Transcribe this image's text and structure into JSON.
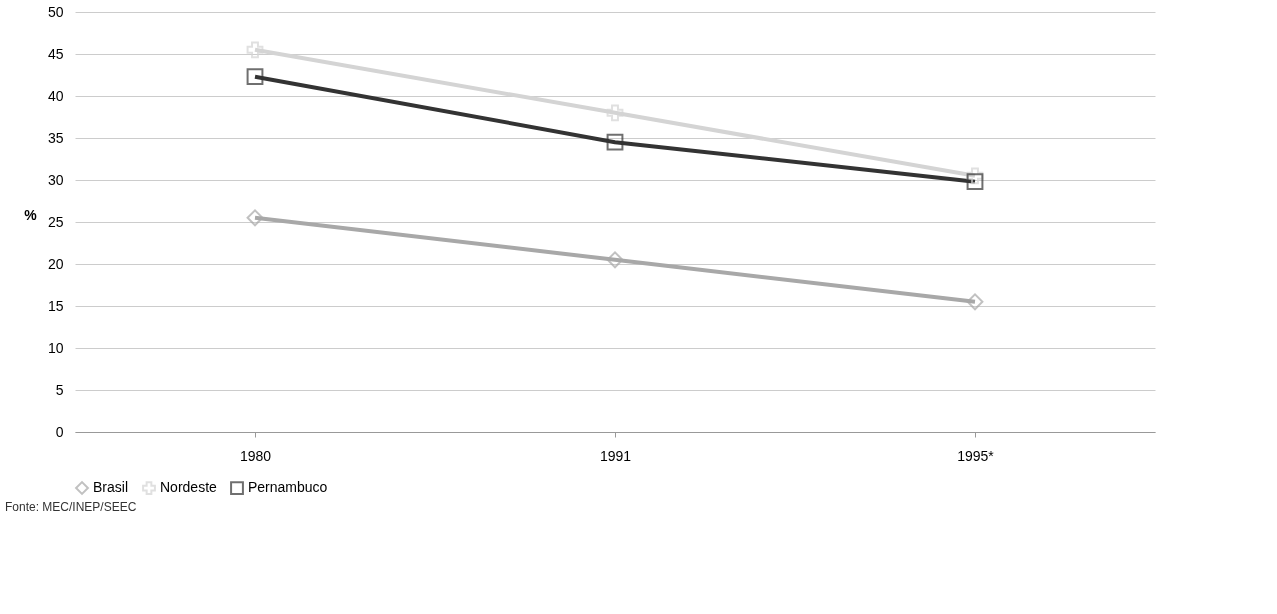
{
  "chart_data": {
    "type": "line",
    "ylabel": "%",
    "categories": [
      "1980",
      "1991",
      "1995*"
    ],
    "series": [
      {
        "name": "Brasil",
        "color": "#a8a8a8",
        "marker": "diamond",
        "values": [
          25.5,
          20.5,
          15.5
        ]
      },
      {
        "name": "Nordeste",
        "color": "#d4d4d4",
        "marker": "cross",
        "values": [
          45.5,
          38,
          30.5
        ]
      },
      {
        "name": "Pernambuco",
        "color": "#333333",
        "marker": "square",
        "values": [
          42.3,
          34.5,
          29.8
        ]
      }
    ],
    "ylim": [
      0,
      50
    ],
    "yticks": [
      0,
      5,
      10,
      15,
      20,
      25,
      30,
      35,
      40,
      45,
      50
    ],
    "grid": "y",
    "legend": "bottom",
    "line_style": "solid",
    "annotations": [
      "Fonte: MEC/INEP/SEEC"
    ]
  }
}
